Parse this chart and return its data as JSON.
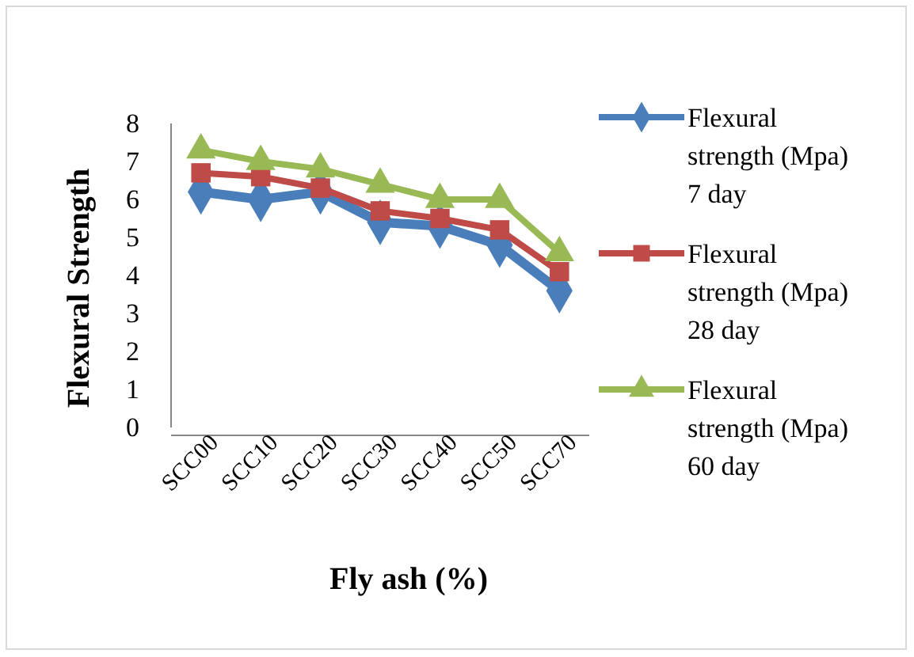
{
  "chart_data": {
    "type": "line",
    "xlabel": "Fly ash (%)",
    "ylabel": "Flexural Strength",
    "categories": [
      "SCC00",
      "SCC10",
      "SCC20",
      "SCC30",
      "SCC40",
      "SCC50",
      "SCC70"
    ],
    "ylim": [
      0,
      8
    ],
    "yticks": [
      0,
      1,
      2,
      3,
      4,
      5,
      6,
      7,
      8
    ],
    "grid": false,
    "legend": "right",
    "series": [
      {
        "name": "Flexural strength (Mpa) 7 day",
        "color": "#4a7ebb",
        "marker": "diamond",
        "values": [
          6.2,
          6.0,
          6.2,
          5.4,
          5.3,
          4.8,
          3.6
        ]
      },
      {
        "name": "Flexural strength (Mpa) 28 day",
        "color": "#be4b48",
        "marker": "square",
        "values": [
          6.7,
          6.6,
          6.3,
          5.7,
          5.5,
          5.2,
          4.1
        ]
      },
      {
        "name": "Flexural strength (Mpa) 60 day",
        "color": "#98b954",
        "marker": "triangle",
        "values": [
          7.3,
          7.0,
          6.8,
          6.4,
          6.0,
          6.0,
          4.6
        ]
      }
    ]
  }
}
